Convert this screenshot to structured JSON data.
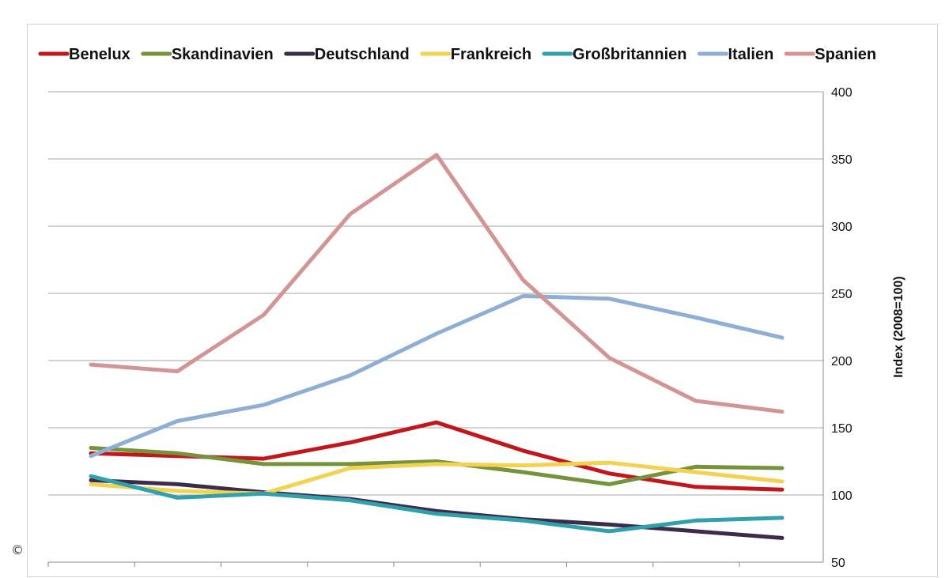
{
  "copyright_symbol": "©",
  "chart_data": {
    "type": "line",
    "title": "",
    "xlabel": "",
    "ylabel": "Index (2008=100)",
    "ylim": [
      50,
      400
    ],
    "yticks": [
      50,
      100,
      150,
      200,
      250,
      300,
      350,
      400
    ],
    "y_axis_position": "right",
    "grid": true,
    "legend_position": "top",
    "x_points": 9,
    "series": [
      {
        "name": "Benelux",
        "color": "#c0161c",
        "values": [
          131,
          129,
          127,
          139,
          154,
          133,
          116,
          106,
          104
        ]
      },
      {
        "name": "Skandinavien",
        "color": "#76923c",
        "values": [
          135,
          131,
          123,
          123,
          125,
          117,
          108,
          121,
          120
        ]
      },
      {
        "name": "Deutschland",
        "color": "#3b2c4a",
        "values": [
          111,
          108,
          102,
          97,
          88,
          82,
          78,
          73,
          68
        ]
      },
      {
        "name": "Frankreich",
        "color": "#f2d250",
        "values": [
          108,
          103,
          101,
          120,
          123,
          122,
          124,
          117,
          110
        ]
      },
      {
        "name": "Großbritannien",
        "color": "#31a0ad",
        "values": [
          114,
          98,
          101,
          96,
          86,
          81,
          73,
          81,
          83
        ]
      },
      {
        "name": "Italien",
        "color": "#8faed3",
        "values": [
          129,
          155,
          167,
          189,
          220,
          248,
          246,
          232,
          217
        ]
      },
      {
        "name": "Spanien",
        "color": "#d29594",
        "values": [
          197,
          192,
          234,
          309,
          353,
          260,
          202,
          170,
          162
        ]
      }
    ]
  }
}
